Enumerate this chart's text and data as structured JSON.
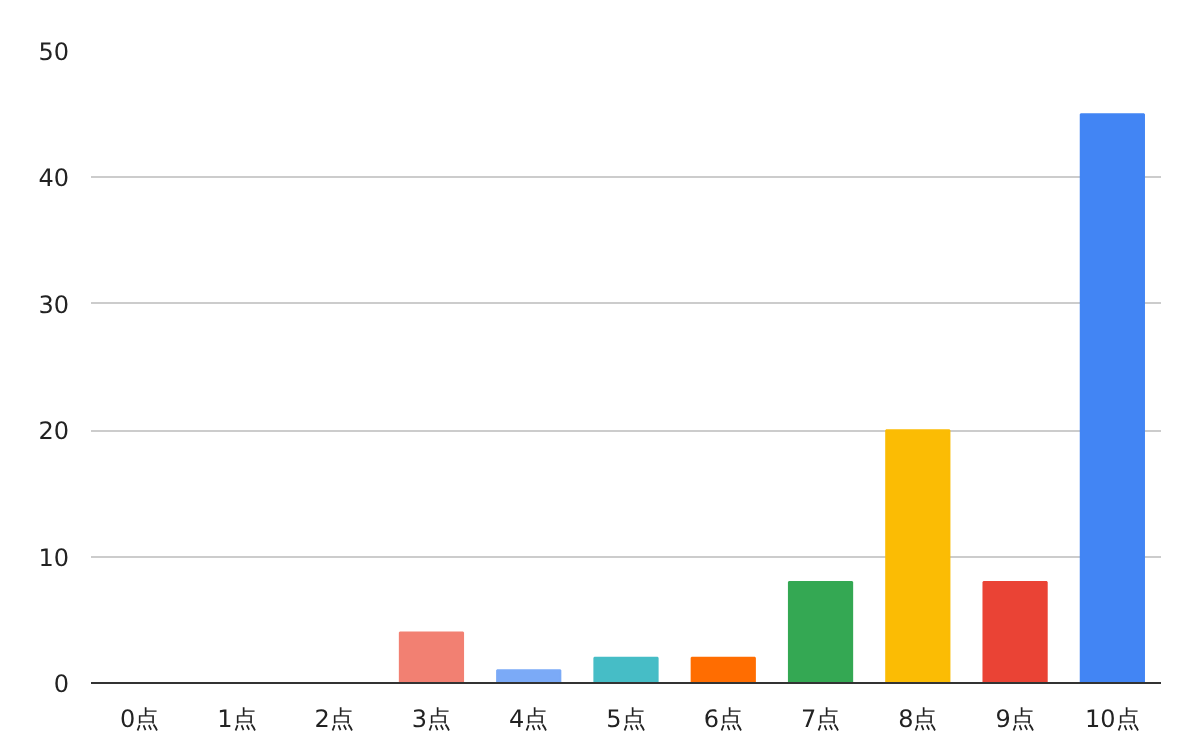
{
  "chart_data": {
    "type": "bar",
    "categories": [
      "0点",
      "1点",
      "2点",
      "3点",
      "4点",
      "5点",
      "6点",
      "7点",
      "8点",
      "9点",
      "10点"
    ],
    "values": [
      0,
      0,
      0,
      4,
      1,
      2,
      2,
      8,
      20,
      8,
      45
    ],
    "colors": [
      "#4285f4",
      "#4285f4",
      "#4285f4",
      "#f28072",
      "#7baaf7",
      "#46bdc6",
      "#ff6d01",
      "#34a853",
      "#fbbc04",
      "#ea4335",
      "#4285f4"
    ],
    "ylim": [
      0,
      50
    ],
    "yticks": [
      0,
      10,
      20,
      30,
      40,
      50
    ],
    "grid": "y"
  }
}
